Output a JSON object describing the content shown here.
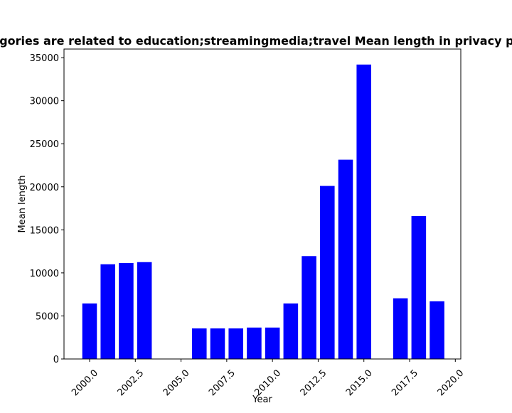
{
  "chart_data": {
    "type": "bar",
    "title": "Categories are related to education;streamingmedia;travel Mean length in privacy policies",
    "xlabel": "Year",
    "ylabel": "Mean length",
    "x": [
      2000,
      2001,
      2002,
      2003,
      2006,
      2007,
      2008,
      2009,
      2010,
      2011,
      2012,
      2013,
      2014,
      2015,
      2017,
      2018,
      2019
    ],
    "values": [
      6450,
      11000,
      11150,
      11250,
      3550,
      3550,
      3550,
      3650,
      3650,
      6450,
      11950,
      20100,
      23150,
      34200,
      7050,
      16600,
      6700
    ],
    "bar_color": "#0000ff",
    "xlim": [
      1998.6,
      2020.3
    ],
    "ylim": [
      0,
      36000
    ],
    "xticks": [
      2000.0,
      2002.5,
      2005.0,
      2007.5,
      2010.0,
      2012.5,
      2015.0,
      2017.5,
      2020.0
    ],
    "xtick_labels": [
      "2000.0",
      "2002.5",
      "2005.0",
      "2007.5",
      "2010.0",
      "2012.5",
      "2015.0",
      "2017.5",
      "2020.0"
    ],
    "yticks": [
      0,
      5000,
      10000,
      15000,
      20000,
      25000,
      30000,
      35000
    ],
    "ytick_labels": [
      "0",
      "5000",
      "10000",
      "15000",
      "20000",
      "25000",
      "30000",
      "35000"
    ],
    "grid": false,
    "legend": "none"
  }
}
